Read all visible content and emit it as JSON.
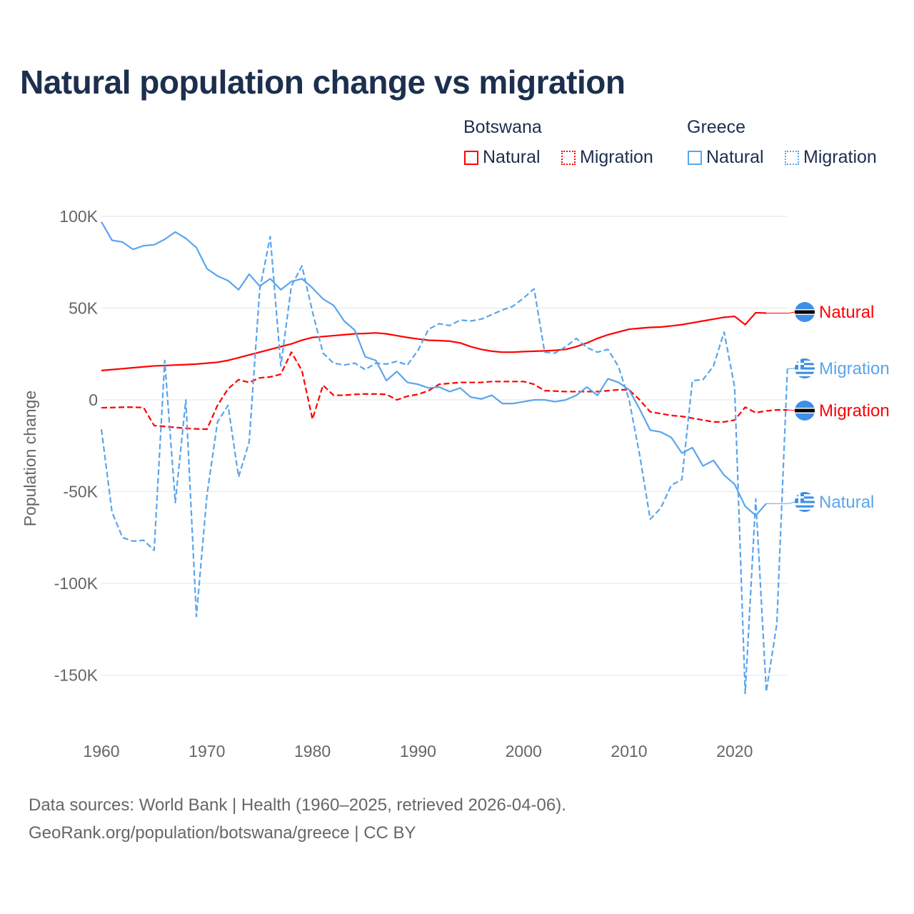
{
  "title": "Natural population change vs migration",
  "legend": {
    "groups": [
      {
        "name": "Botswana",
        "items": [
          {
            "label": "Natural",
            "style": "solid",
            "color": "#ff0000"
          },
          {
            "label": "Migration",
            "style": "dotted",
            "color": "#ff0000"
          }
        ]
      },
      {
        "name": "Greece",
        "items": [
          {
            "label": "Natural",
            "style": "solid",
            "color": "#5aa5ec"
          },
          {
            "label": "Migration",
            "style": "dotted",
            "color": "#5aa5ec"
          }
        ]
      }
    ]
  },
  "footer": {
    "line1": "Data sources: World Bank | Health (1960–2025, retrieved 2026-04-06).",
    "line2": "GeoRank.org/population/botswana/greece | CC BY"
  },
  "chart_data": {
    "type": "line",
    "title": "Natural population change vs migration",
    "xlabel": "",
    "ylabel": "Population change",
    "xlim": [
      1960,
      2025
    ],
    "ylim": [
      -170000,
      105000
    ],
    "xticks": [
      1960,
      1970,
      1980,
      1990,
      2000,
      2010,
      2020
    ],
    "xtick_labels": [
      "1960",
      "1970",
      "1980",
      "1990",
      "2000",
      "2010",
      "2020"
    ],
    "yticks": [
      100000,
      50000,
      0,
      -50000,
      -100000,
      -150000
    ],
    "ytick_labels": [
      "100K",
      "50K",
      "0",
      "-50K",
      "-100K",
      "-150K"
    ],
    "grid": true,
    "x_start": 1960,
    "series": [
      {
        "name": "Botswana Natural",
        "end_label": "Natural",
        "flag": "botswana",
        "color": "#ff0000",
        "dash": false,
        "values": [
          16,
          16.5,
          17,
          17.5,
          18,
          18.5,
          18.7,
          19,
          19.2,
          19.5,
          20,
          20.5,
          21.5,
          23,
          24.5,
          26,
          27.5,
          29,
          30.5,
          32.5,
          34,
          34.5,
          35,
          35.5,
          36,
          36.2,
          36.5,
          36,
          35,
          34,
          33.2,
          32.5,
          32.3,
          32,
          31,
          29,
          27.5,
          26.5,
          26,
          26,
          26.3,
          26.5,
          26.7,
          27,
          27.5,
          29,
          31,
          33.5,
          35.5,
          37,
          38.5,
          39,
          39.5,
          39.7,
          40.3,
          41,
          42,
          43,
          44,
          45,
          45.5,
          41,
          47.5,
          47.3
        ]
      },
      {
        "name": "Botswana Migration",
        "end_label": "Migration",
        "flag": "botswana",
        "color": "#ff0000",
        "dash": true,
        "values": [
          -4.3,
          -4.2,
          -4,
          -4,
          -4.2,
          -14,
          -14.5,
          -15,
          -15.5,
          -15.8,
          -16,
          -3,
          6,
          11,
          9.5,
          12,
          12.5,
          14,
          26,
          16,
          -10.5,
          8,
          2.5,
          2.5,
          3,
          3.2,
          3.2,
          3,
          0,
          2,
          3,
          5,
          8.5,
          9,
          9.5,
          9.5,
          9.5,
          10,
          10,
          10,
          10,
          8.5,
          5,
          4.8,
          4.5,
          4.5,
          4.5,
          4.5,
          5,
          5.5,
          5.5,
          0,
          -6.5,
          -7.5,
          -8.5,
          -9,
          -10,
          -11,
          -12,
          -12,
          -11,
          -4,
          -7,
          -6,
          -5.5,
          -5.5
        ]
      },
      {
        "name": "Greece Natural",
        "end_label": "Natural",
        "flag": "greece",
        "color": "#5aa5ec",
        "dash": false,
        "values": [
          97,
          87,
          86,
          82,
          84,
          84.5,
          87.5,
          91.5,
          88,
          83,
          71.5,
          67.5,
          65,
          60,
          68.5,
          62,
          66,
          60,
          64.5,
          66,
          61,
          55,
          51.5,
          43,
          38,
          23.5,
          21.5,
          10.5,
          15.5,
          9.5,
          8.5,
          6.5,
          7,
          4.5,
          6.5,
          1.5,
          0.5,
          2.5,
          -2,
          -2,
          -1,
          0,
          0,
          -1,
          0,
          2.5,
          7,
          2.5,
          11.5,
          9.5,
          5.5,
          -5,
          -16.5,
          -17.5,
          -20.5,
          -29,
          -26,
          -36,
          -33,
          -41,
          -46,
          -58,
          -63,
          -56.5
        ]
      },
      {
        "name": "Greece Migration",
        "end_label": "Migration",
        "flag": "greece",
        "color": "#5aa5ec",
        "dash": true,
        "values": [
          -16,
          -61,
          -75,
          -77,
          -76.5,
          -82,
          21.5,
          -56,
          0,
          -118,
          -52,
          -12,
          -3,
          -42,
          -23,
          60,
          89,
          18.5,
          62,
          73,
          48,
          25.5,
          20,
          19,
          20,
          16.5,
          20,
          19.5,
          21,
          19,
          27,
          38.5,
          41.5,
          40.5,
          43.5,
          43,
          44,
          46.5,
          49,
          51,
          55.5,
          60.5,
          26,
          25.5,
          29,
          33.5,
          28.5,
          26,
          27.5,
          18,
          0,
          -30,
          -65,
          -59,
          -46.5,
          -43.5,
          10.5,
          11,
          18.5,
          37,
          7,
          -160,
          -54,
          -159,
          -122,
          17
        ]
      }
    ],
    "value_unit": "thousands"
  }
}
